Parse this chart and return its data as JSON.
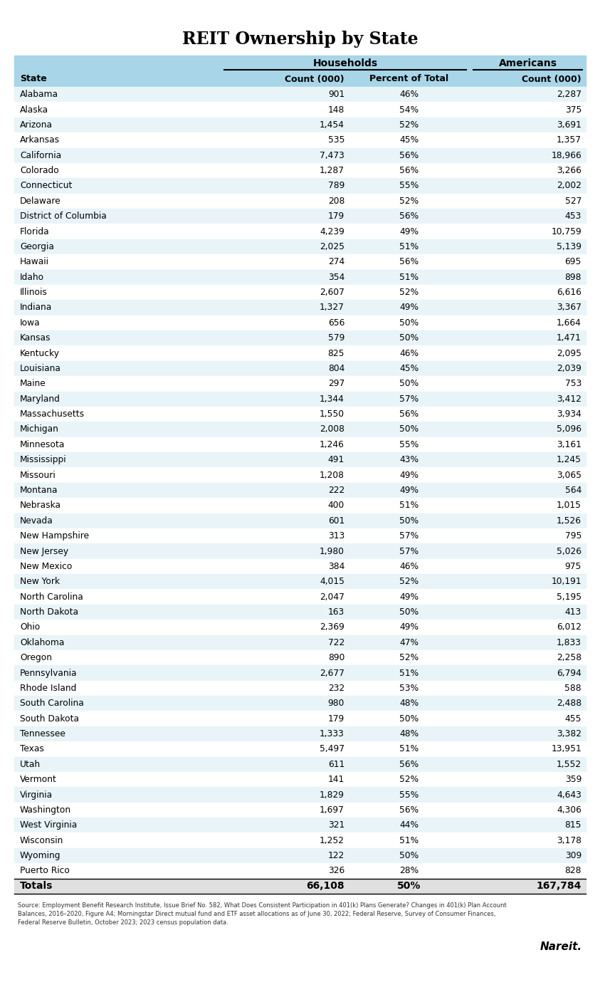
{
  "title": "REIT Ownership by State",
  "header_group1": "Households",
  "header_group2": "Americans",
  "col_headers": [
    "State",
    "Count (000)",
    "Percent of Total",
    "Count (000)"
  ],
  "rows": [
    [
      "Alabama",
      "901",
      "46%",
      "2,287"
    ],
    [
      "Alaska",
      "148",
      "54%",
      "375"
    ],
    [
      "Arizona",
      "1,454",
      "52%",
      "3,691"
    ],
    [
      "Arkansas",
      "535",
      "45%",
      "1,357"
    ],
    [
      "California",
      "7,473",
      "56%",
      "18,966"
    ],
    [
      "Colorado",
      "1,287",
      "56%",
      "3,266"
    ],
    [
      "Connecticut",
      "789",
      "55%",
      "2,002"
    ],
    [
      "Delaware",
      "208",
      "52%",
      "527"
    ],
    [
      "District of Columbia",
      "179",
      "56%",
      "453"
    ],
    [
      "Florida",
      "4,239",
      "49%",
      "10,759"
    ],
    [
      "Georgia",
      "2,025",
      "51%",
      "5,139"
    ],
    [
      "Hawaii",
      "274",
      "56%",
      "695"
    ],
    [
      "Idaho",
      "354",
      "51%",
      "898"
    ],
    [
      "Illinois",
      "2,607",
      "52%",
      "6,616"
    ],
    [
      "Indiana",
      "1,327",
      "49%",
      "3,367"
    ],
    [
      "Iowa",
      "656",
      "50%",
      "1,664"
    ],
    [
      "Kansas",
      "579",
      "50%",
      "1,471"
    ],
    [
      "Kentucky",
      "825",
      "46%",
      "2,095"
    ],
    [
      "Louisiana",
      "804",
      "45%",
      "2,039"
    ],
    [
      "Maine",
      "297",
      "50%",
      "753"
    ],
    [
      "Maryland",
      "1,344",
      "57%",
      "3,412"
    ],
    [
      "Massachusetts",
      "1,550",
      "56%",
      "3,934"
    ],
    [
      "Michigan",
      "2,008",
      "50%",
      "5,096"
    ],
    [
      "Minnesota",
      "1,246",
      "55%",
      "3,161"
    ],
    [
      "Mississippi",
      "491",
      "43%",
      "1,245"
    ],
    [
      "Missouri",
      "1,208",
      "49%",
      "3,065"
    ],
    [
      "Montana",
      "222",
      "49%",
      "564"
    ],
    [
      "Nebraska",
      "400",
      "51%",
      "1,015"
    ],
    [
      "Nevada",
      "601",
      "50%",
      "1,526"
    ],
    [
      "New Hampshire",
      "313",
      "57%",
      "795"
    ],
    [
      "New Jersey",
      "1,980",
      "57%",
      "5,026"
    ],
    [
      "New Mexico",
      "384",
      "46%",
      "975"
    ],
    [
      "New York",
      "4,015",
      "52%",
      "10,191"
    ],
    [
      "North Carolina",
      "2,047",
      "49%",
      "5,195"
    ],
    [
      "North Dakota",
      "163",
      "50%",
      "413"
    ],
    [
      "Ohio",
      "2,369",
      "49%",
      "6,012"
    ],
    [
      "Oklahoma",
      "722",
      "47%",
      "1,833"
    ],
    [
      "Oregon",
      "890",
      "52%",
      "2,258"
    ],
    [
      "Pennsylvania",
      "2,677",
      "51%",
      "6,794"
    ],
    [
      "Rhode Island",
      "232",
      "53%",
      "588"
    ],
    [
      "South Carolina",
      "980",
      "48%",
      "2,488"
    ],
    [
      "South Dakota",
      "179",
      "50%",
      "455"
    ],
    [
      "Tennessee",
      "1,333",
      "48%",
      "3,382"
    ],
    [
      "Texas",
      "5,497",
      "51%",
      "13,951"
    ],
    [
      "Utah",
      "611",
      "56%",
      "1,552"
    ],
    [
      "Vermont",
      "141",
      "52%",
      "359"
    ],
    [
      "Virginia",
      "1,829",
      "55%",
      "4,643"
    ],
    [
      "Washington",
      "1,697",
      "56%",
      "4,306"
    ],
    [
      "West Virginia",
      "321",
      "44%",
      "815"
    ],
    [
      "Wisconsin",
      "1,252",
      "51%",
      "3,178"
    ],
    [
      "Wyoming",
      "122",
      "50%",
      "309"
    ],
    [
      "Puerto Rico",
      "326",
      "28%",
      "828"
    ]
  ],
  "totals_row": [
    "Totals",
    "66,108",
    "50%",
    "167,784"
  ],
  "source_text": "Source: Employment Benefit Research Institute, Issue Brief No. 582, What Does Consistent Participation in 401(k) Plans Generate? Changes in 401(k) Plan Account\nBalances, 2016–2020, Figure A4; Morningstar Direct mutual fund and ETF asset allocations as of June 30, 2022; Federal Reserve, Survey of Consumer Finances,\nFederal Reserve Bulletin, October 2023; 2023 census population data.",
  "brand_text": "Nareit.",
  "header_bg": "#A8D5E8",
  "row_even_bg": "#FFFFFF",
  "row_odd_bg": "#E8F4F8",
  "totals_bg": "#E0E0E0",
  "title_color": "#000000",
  "fig_bg": "#FFFFFF"
}
